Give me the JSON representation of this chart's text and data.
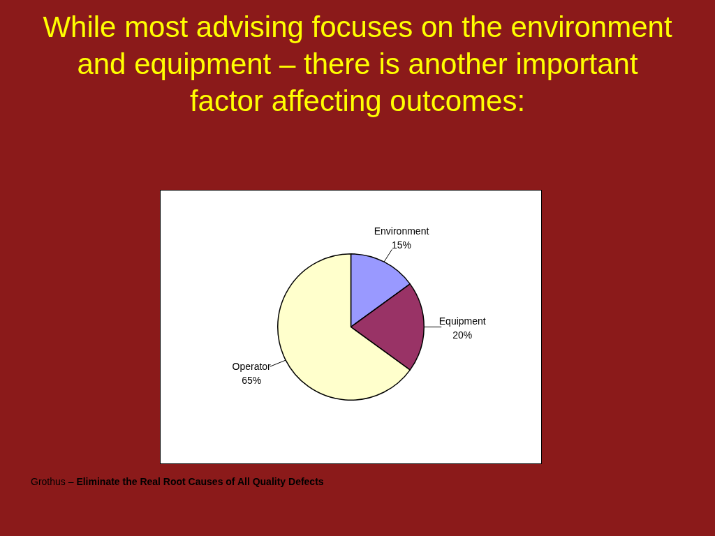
{
  "chart_data": {
    "type": "pie",
    "title": "While most advising focuses on the environment and equipment – there is another important factor affecting outcomes:",
    "categories": [
      "Environment",
      "Equipment",
      "Operator"
    ],
    "values": [
      15,
      20,
      65
    ],
    "value_labels": [
      "15%",
      "20%",
      "65%"
    ],
    "colors": [
      "#9999ff",
      "#993366",
      "#ffffcc"
    ],
    "legend": false,
    "annotations": [
      "Grothus –",
      "Eliminate the Real Root Causes of All Quality Defects"
    ]
  }
}
